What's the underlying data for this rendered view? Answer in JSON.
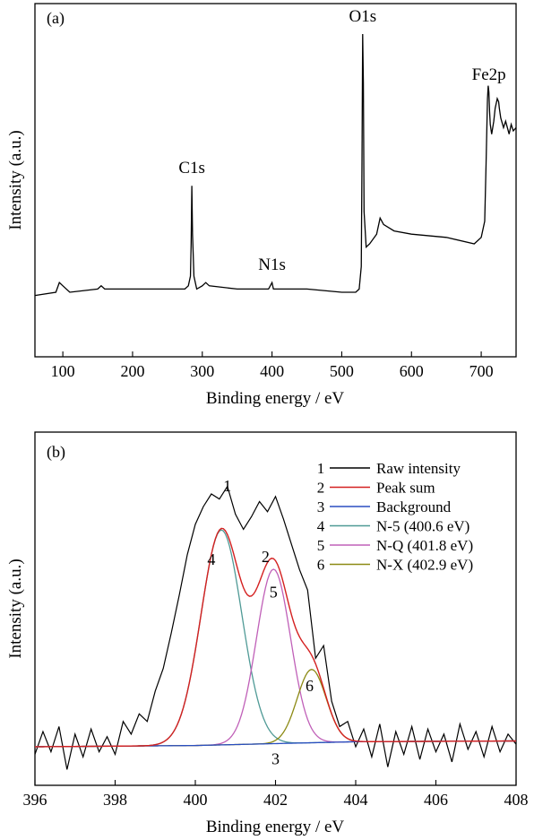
{
  "chart_data": [
    {
      "type": "line",
      "panel_label": "(a)",
      "xlabel": "Binding energy / eV",
      "ylabel": "Intensity (a.u.)",
      "xlim": [
        60,
        750
      ],
      "ylim": [
        0,
        1
      ],
      "xticks": [
        100,
        200,
        300,
        400,
        500,
        600,
        700
      ],
      "grid": false,
      "peaks": [
        {
          "label": "C1s",
          "x": 285
        },
        {
          "label": "N1s",
          "x": 400
        },
        {
          "label": "O1s",
          "x": 530
        },
        {
          "label": "Fe2p",
          "x": 711
        }
      ],
      "series": [
        {
          "color": "#000000",
          "x": [
            60,
            90,
            95,
            100,
            110,
            150,
            155,
            160,
            250,
            275,
            280,
            283,
            284,
            285,
            286,
            288,
            292,
            300,
            305,
            310,
            350,
            395,
            400,
            402,
            405,
            450,
            500,
            520,
            525,
            528,
            529,
            530,
            531,
            532,
            535,
            540,
            550,
            555,
            560,
            575,
            600,
            650,
            690,
            700,
            705,
            707,
            709,
            710,
            711,
            712,
            713,
            715,
            718,
            720,
            723,
            725,
            726,
            728,
            732,
            735,
            740,
            743,
            746,
            750
          ],
          "y": [
            0.19,
            0.2,
            0.23,
            0.22,
            0.2,
            0.21,
            0.22,
            0.21,
            0.21,
            0.21,
            0.22,
            0.25,
            0.35,
            0.53,
            0.38,
            0.25,
            0.21,
            0.22,
            0.23,
            0.22,
            0.21,
            0.21,
            0.23,
            0.21,
            0.21,
            0.21,
            0.2,
            0.2,
            0.21,
            0.28,
            0.6,
            1.0,
            0.85,
            0.45,
            0.34,
            0.35,
            0.38,
            0.43,
            0.41,
            0.39,
            0.38,
            0.37,
            0.35,
            0.37,
            0.42,
            0.6,
            0.8,
            0.84,
            0.82,
            0.76,
            0.72,
            0.69,
            0.73,
            0.77,
            0.8,
            0.79,
            0.77,
            0.74,
            0.71,
            0.73,
            0.69,
            0.72,
            0.7,
            0.71
          ]
        }
      ]
    },
    {
      "type": "line",
      "panel_label": "(b)",
      "xlabel": "Binding energy  / eV",
      "ylabel": "Intensity (a.u.)",
      "xlim": [
        396,
        408
      ],
      "ylim": [
        0,
        1
      ],
      "xticks": [
        396,
        398,
        400,
        402,
        404,
        406,
        408
      ],
      "grid": false,
      "legend_placement": "top-right",
      "legend": [
        {
          "num": "1",
          "label": "Raw intensity",
          "color": "#000000"
        },
        {
          "num": "2",
          "label": "Peak sum",
          "color": "#d42020"
        },
        {
          "num": "3",
          "label": "Background",
          "color": "#2a4fc0"
        },
        {
          "num": "4",
          "label": "N-5 (400.6 eV)",
          "color": "#4f9a96"
        },
        {
          "num": "5",
          "label": "N-Q (401.8 eV)",
          "color": "#c060b8"
        },
        {
          "num": "6",
          "label": "N-X (402.9 eV)",
          "color": "#8c8a14"
        }
      ],
      "curve_labels": [
        {
          "text": "1",
          "x": 400.8,
          "y": 1.01
        },
        {
          "text": "2",
          "x": 401.75,
          "y": 0.73
        },
        {
          "text": "3",
          "x": 402.0,
          "y": -0.07
        },
        {
          "text": "4",
          "x": 400.4,
          "y": 0.72
        },
        {
          "text": "5",
          "x": 401.95,
          "y": 0.59
        },
        {
          "text": "6",
          "x": 402.85,
          "y": 0.22
        }
      ],
      "background": {
        "x": [
          396,
          400,
          404,
          408
        ],
        "y": [
          0.0,
          0.005,
          0.02,
          0.023
        ]
      },
      "components": [
        {
          "name": "N-5 (400.6 eV)",
          "center": 400.65,
          "height": 0.85,
          "fwhm": 1.2
        },
        {
          "name": "N-Q (401.8 eV)",
          "center": 401.95,
          "height": 0.69,
          "fwhm": 1.0
        },
        {
          "name": "N-X (402.9 eV)",
          "center": 402.9,
          "height": 0.29,
          "fwhm": 0.85
        }
      ],
      "raw": {
        "x": [
          396.0,
          396.2,
          396.4,
          396.6,
          396.8,
          397.0,
          397.2,
          397.4,
          397.6,
          397.8,
          398.0,
          398.2,
          398.4,
          398.6,
          398.8,
          399.0,
          399.2,
          399.4,
          399.6,
          399.8,
          400.0,
          400.2,
          400.4,
          400.6,
          400.8,
          401.0,
          401.2,
          401.4,
          401.6,
          401.8,
          402.0,
          402.2,
          402.4,
          402.6,
          402.8,
          403.0,
          403.2,
          403.4,
          403.6,
          403.8,
          404.0,
          404.2,
          404.4,
          404.6,
          404.8,
          405.0,
          405.2,
          405.4,
          405.6,
          405.8,
          406.0,
          406.2,
          406.4,
          406.6,
          406.8,
          407.0,
          407.2,
          407.4,
          407.6,
          407.8,
          408.0
        ],
        "y": [
          -0.03,
          0.06,
          -0.02,
          0.08,
          -0.09,
          0.05,
          -0.04,
          0.07,
          -0.02,
          0.04,
          -0.03,
          0.1,
          0.05,
          0.13,
          0.1,
          0.22,
          0.31,
          0.45,
          0.6,
          0.76,
          0.88,
          0.95,
          1.0,
          0.98,
          1.03,
          0.92,
          0.86,
          0.91,
          0.97,
          0.93,
          0.99,
          0.9,
          0.8,
          0.7,
          0.62,
          0.35,
          0.4,
          0.18,
          0.08,
          0.1,
          0.0,
          0.07,
          -0.04,
          0.09,
          -0.08,
          0.06,
          -0.03,
          0.08,
          -0.05,
          0.07,
          -0.02,
          0.05,
          -0.06,
          0.09,
          -0.01,
          0.06,
          -0.04,
          0.08,
          -0.02,
          0.05,
          0.01
        ]
      }
    }
  ]
}
